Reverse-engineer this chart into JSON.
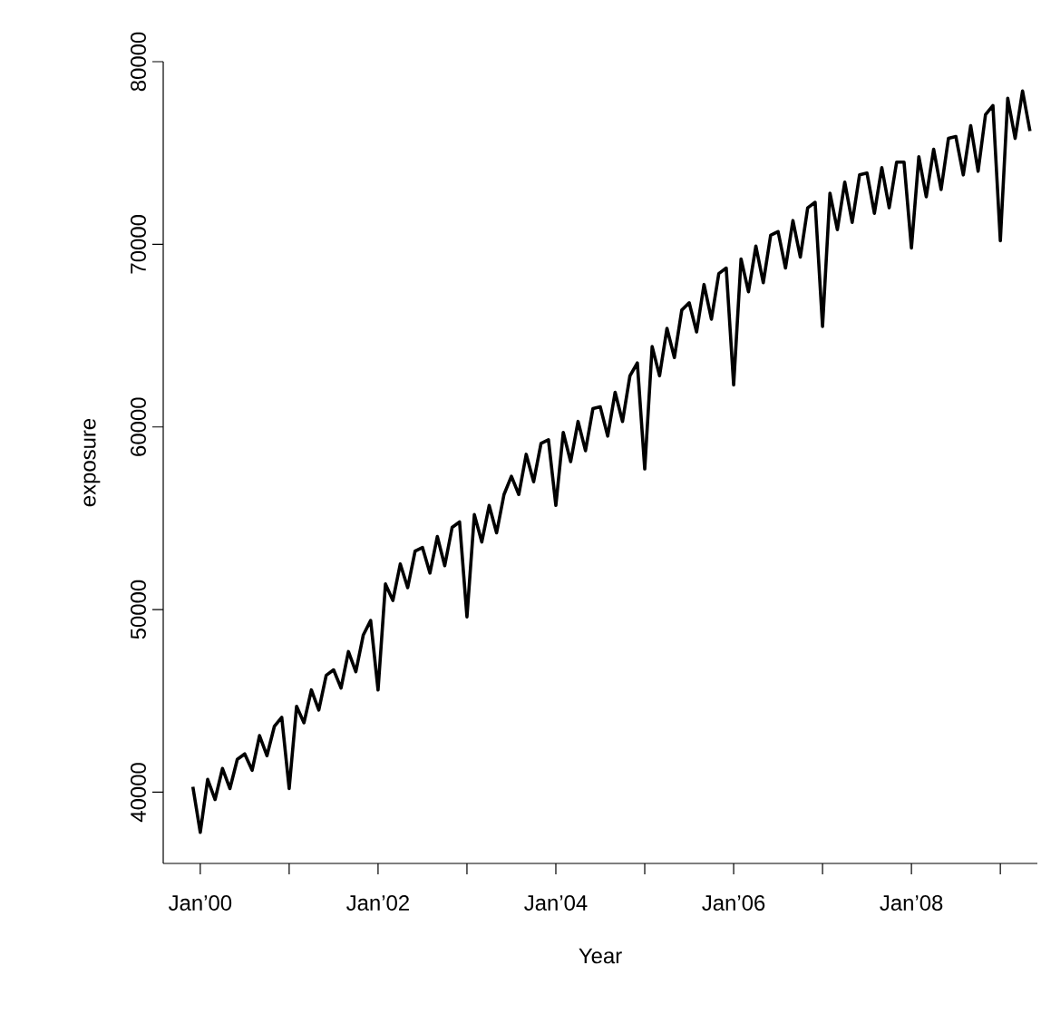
{
  "chart_data": {
    "type": "line",
    "xlabel": "Year",
    "ylabel": "exposure",
    "color": "#000000",
    "line_style": "solid",
    "x": [
      "1999-12",
      "2000-01",
      "2000-02",
      "2000-03",
      "2000-04",
      "2000-05",
      "2000-06",
      "2000-07",
      "2000-08",
      "2000-09",
      "2000-10",
      "2000-11",
      "2000-12",
      "2001-01",
      "2001-02",
      "2001-03",
      "2001-04",
      "2001-05",
      "2001-06",
      "2001-07",
      "2001-08",
      "2001-09",
      "2001-10",
      "2001-11",
      "2001-12",
      "2002-01",
      "2002-02",
      "2002-03",
      "2002-04",
      "2002-05",
      "2002-06",
      "2002-07",
      "2002-08",
      "2002-09",
      "2002-10",
      "2002-11",
      "2002-12",
      "2003-01",
      "2003-02",
      "2003-03",
      "2003-04",
      "2003-05",
      "2003-06",
      "2003-07",
      "2003-08",
      "2003-09",
      "2003-10",
      "2003-11",
      "2003-12",
      "2004-01",
      "2004-02",
      "2004-03",
      "2004-04",
      "2004-05",
      "2004-06",
      "2004-07",
      "2004-08",
      "2004-09",
      "2004-10",
      "2004-11",
      "2004-12",
      "2005-01",
      "2005-02",
      "2005-03",
      "2005-04",
      "2005-05",
      "2005-06",
      "2005-07",
      "2005-08",
      "2005-09",
      "2005-10",
      "2005-11",
      "2005-12",
      "2006-01",
      "2006-02",
      "2006-03",
      "2006-04",
      "2006-05",
      "2006-06",
      "2006-07",
      "2006-08",
      "2006-09",
      "2006-10",
      "2006-11",
      "2006-12",
      "2007-01",
      "2007-02",
      "2007-03",
      "2007-04",
      "2007-05",
      "2007-06",
      "2007-07",
      "2007-08",
      "2007-09",
      "2007-10",
      "2007-11",
      "2007-12",
      "2008-01",
      "2008-02",
      "2008-03",
      "2008-04",
      "2008-05",
      "2008-06",
      "2008-07",
      "2008-08",
      "2008-09",
      "2008-10",
      "2008-11",
      "2008-12",
      "2009-01",
      "2009-02",
      "2009-03",
      "2009-04",
      "2009-05"
    ],
    "values": [
      40300,
      37800,
      40700,
      39600,
      41300,
      40200,
      41800,
      42100,
      41200,
      43100,
      42000,
      43600,
      44100,
      40200,
      44700,
      43800,
      45600,
      44500,
      46400,
      46700,
      45700,
      47700,
      46600,
      48600,
      49400,
      45600,
      51400,
      50500,
      52500,
      51200,
      53200,
      53400,
      52000,
      54000,
      52400,
      54500,
      54800,
      49600,
      55200,
      53700,
      55700,
      54200,
      56300,
      57300,
      56300,
      58500,
      57000,
      59100,
      59300,
      55700,
      59700,
      58100,
      60300,
      58700,
      61000,
      61100,
      59500,
      61900,
      60300,
      62800,
      63500,
      57700,
      64400,
      62800,
      65400,
      63800,
      66400,
      66800,
      65200,
      67800,
      65900,
      68400,
      68700,
      62300,
      69200,
      67400,
      69900,
      67900,
      70500,
      70700,
      68700,
      71300,
      69300,
      72000,
      72300,
      65500,
      72800,
      70800,
      73400,
      71200,
      73800,
      73900,
      71700,
      74200,
      72000,
      74500,
      74500,
      69800,
      74800,
      72600,
      75200,
      73000,
      75800,
      75900,
      73800,
      76500,
      74000,
      77100,
      77600,
      70200,
      78000,
      75800,
      78400,
      76200
    ],
    "xlim": [
      "1999-08",
      "2009-06"
    ],
    "ylim": [
      36100,
      80000
    ],
    "xticks": [
      {
        "value": "2000-01",
        "label": "Jan’00"
      },
      {
        "value": "2001-01",
        "label": null
      },
      {
        "value": "2002-01",
        "label": "Jan’02"
      },
      {
        "value": "2003-01",
        "label": null
      },
      {
        "value": "2004-01",
        "label": "Jan’04"
      },
      {
        "value": "2005-01",
        "label": null
      },
      {
        "value": "2006-01",
        "label": "Jan’06"
      },
      {
        "value": "2007-01",
        "label": null
      },
      {
        "value": "2008-01",
        "label": "Jan’08"
      },
      {
        "value": "2009-01",
        "label": null
      }
    ],
    "yticks": [
      40000,
      50000,
      60000,
      70000,
      80000
    ]
  }
}
